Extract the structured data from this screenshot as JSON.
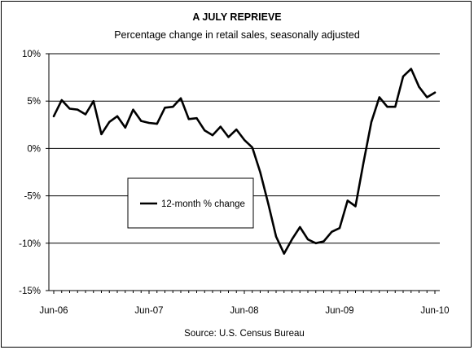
{
  "chart_data": {
    "type": "line",
    "title": "A JULY REPRIEVE",
    "subtitle": "Percentage change in retail sales, seasonally adjusted",
    "source": "Source: U.S. Census Bureau",
    "legend": {
      "placement": "left-middle"
    },
    "ylim": [
      -15,
      10
    ],
    "yticks": [
      {
        "value": 10,
        "label": "10%"
      },
      {
        "value": 5,
        "label": "5%"
      },
      {
        "value": 0,
        "label": "0%"
      },
      {
        "value": -5,
        "label": "-5%"
      },
      {
        "value": -10,
        "label": "-10%"
      },
      {
        "value": -15,
        "label": "-15%"
      }
    ],
    "xticks": [
      {
        "index": 0,
        "label": "Jun-06"
      },
      {
        "index": 12,
        "label": "Jun-07"
      },
      {
        "index": 24,
        "label": "Jun-08"
      },
      {
        "index": 36,
        "label": "Jun-09"
      },
      {
        "index": 48,
        "label": "Jun-10"
      }
    ],
    "grid": {
      "horizontal": true,
      "vertical": false
    },
    "series": [
      {
        "name": "12-month % change",
        "color": "#000000",
        "x": [
          "Jun-06",
          "Jul-06",
          "Aug-06",
          "Sep-06",
          "Oct-06",
          "Nov-06",
          "Dec-06",
          "Jan-07",
          "Feb-07",
          "Mar-07",
          "Apr-07",
          "May-07",
          "Jun-07",
          "Jul-07",
          "Aug-07",
          "Sep-07",
          "Oct-07",
          "Nov-07",
          "Dec-07",
          "Jan-08",
          "Feb-08",
          "Mar-08",
          "Apr-08",
          "May-08",
          "Jun-08",
          "Jul-08",
          "Aug-08",
          "Sep-08",
          "Oct-08",
          "Nov-08",
          "Dec-08",
          "Jan-09",
          "Feb-09",
          "Mar-09",
          "Apr-09",
          "May-09",
          "Jun-09",
          "Jul-09",
          "Aug-09",
          "Sep-09",
          "Oct-09",
          "Nov-09",
          "Dec-09",
          "Jan-10",
          "Feb-10",
          "Mar-10",
          "Apr-10",
          "May-10",
          "Jun-10"
        ],
        "values": [
          3.4,
          5.1,
          4.2,
          4.1,
          3.6,
          5.0,
          1.5,
          2.8,
          3.4,
          2.2,
          4.1,
          2.9,
          2.7,
          2.6,
          4.3,
          4.4,
          5.3,
          3.1,
          3.2,
          1.9,
          1.4,
          2.3,
          1.2,
          2.0,
          0.9,
          0.1,
          -2.5,
          -5.8,
          -9.3,
          -11.1,
          -9.6,
          -8.3,
          -9.6,
          -10.0,
          -9.8,
          -8.8,
          -8.4,
          -5.5,
          -6.1,
          -1.5,
          2.8,
          5.4,
          4.4,
          4.4,
          7.6,
          8.4,
          6.5,
          5.4,
          5.9
        ]
      }
    ]
  }
}
